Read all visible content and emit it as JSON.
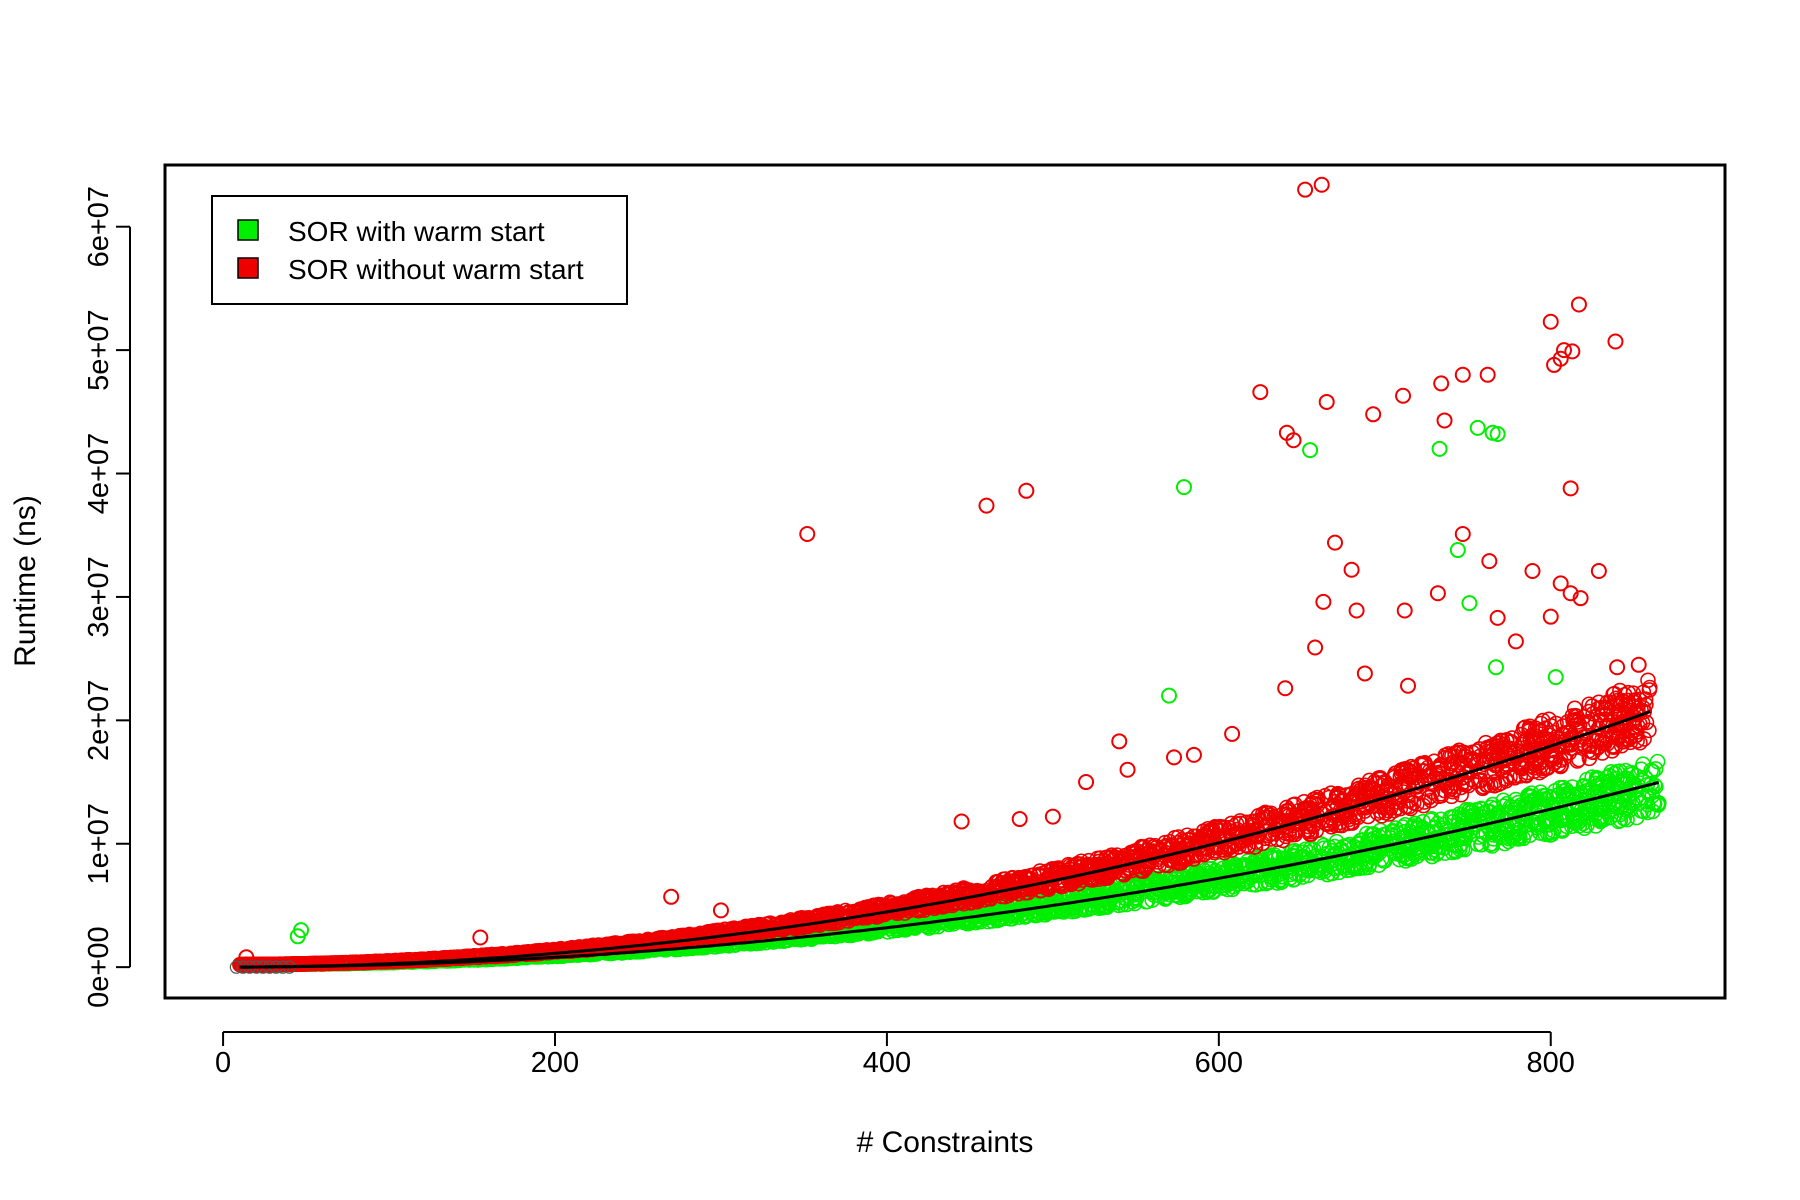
{
  "chart_data": {
    "type": "scatter",
    "title": "",
    "xlabel": "# Constraints",
    "ylabel": "Runtime (ns)",
    "xlim": [
      -35,
      905
    ],
    "ylim": [
      -2500000,
      65000000
    ],
    "x_ticks": [
      0,
      200,
      400,
      600,
      800
    ],
    "x_tick_labels": [
      "0",
      "200",
      "400",
      "600",
      "800"
    ],
    "y_ticks": [
      0,
      10000000,
      20000000,
      30000000,
      40000000,
      50000000,
      60000000
    ],
    "y_tick_labels": [
      "0e+00",
      "1e+07",
      "2e+07",
      "3e+07",
      "4e+07",
      "5e+07",
      "6e+07"
    ],
    "grid": false,
    "legend_position": "top-left",
    "series": [
      {
        "name": "SOR with warm start",
        "color": "#00ee00",
        "marker": "open-circle",
        "trend_coef": 20.0,
        "trend_color": "#000000",
        "band": {
          "x_from": 10,
          "x_to": 865,
          "lower_frac": 0.82,
          "upper_frac": 1.12
        },
        "outliers": [
          [
            45,
            2500000
          ],
          [
            47,
            3000000
          ],
          [
            570,
            22000000
          ],
          [
            579,
            38900000
          ],
          [
            655,
            41900000
          ],
          [
            733,
            42000000
          ],
          [
            744,
            33800000
          ],
          [
            751,
            29500000
          ],
          [
            756,
            43700000
          ],
          [
            765,
            43300000
          ],
          [
            768,
            43200000
          ],
          [
            767,
            24300000
          ],
          [
            803,
            23500000
          ],
          [
            865,
            13300000
          ]
        ]
      },
      {
        "name": "SOR without warm start",
        "color": "#ee0000",
        "marker": "open-circle",
        "trend_coef": 28.0,
        "trend_color": "#000000",
        "band": {
          "x_from": 10,
          "x_to": 860,
          "lower_frac": 0.88,
          "upper_frac": 1.12
        },
        "outliers": [
          [
            352,
            35100000
          ],
          [
            460,
            37400000
          ],
          [
            484,
            38600000
          ],
          [
            625,
            46600000
          ],
          [
            641,
            43300000
          ],
          [
            645,
            42700000
          ],
          [
            652,
            63000000
          ],
          [
            662,
            63400000
          ],
          [
            665,
            45800000
          ],
          [
            693,
            44800000
          ],
          [
            711,
            46300000
          ],
          [
            734,
            47300000
          ],
          [
            736,
            44300000
          ],
          [
            747,
            48000000
          ],
          [
            762,
            48000000
          ],
          [
            800,
            52300000
          ],
          [
            802,
            48800000
          ],
          [
            806,
            49300000
          ],
          [
            808,
            50000000
          ],
          [
            813,
            49900000
          ],
          [
            817,
            53700000
          ],
          [
            839,
            50700000
          ],
          [
            812,
            38800000
          ],
          [
            747,
            35100000
          ],
          [
            670,
            34400000
          ],
          [
            680,
            32200000
          ],
          [
            763,
            32900000
          ],
          [
            789,
            32100000
          ],
          [
            829,
            32100000
          ],
          [
            732,
            30300000
          ],
          [
            663,
            29600000
          ],
          [
            683,
            28900000
          ],
          [
            712,
            28900000
          ],
          [
            768,
            28300000
          ],
          [
            800,
            28400000
          ],
          [
            806,
            31100000
          ],
          [
            812,
            30300000
          ],
          [
            818,
            29900000
          ],
          [
            540,
            18300000
          ],
          [
            573,
            17000000
          ],
          [
            608,
            18900000
          ],
          [
            640,
            22600000
          ],
          [
            658,
            25900000
          ],
          [
            688,
            23800000
          ],
          [
            714,
            22800000
          ],
          [
            270,
            5700000
          ],
          [
            300,
            4600000
          ],
          [
            155,
            2400000
          ],
          [
            14,
            800000
          ],
          [
            445,
            11800000
          ],
          [
            480,
            12000000
          ],
          [
            500,
            12200000
          ],
          [
            520,
            15000000
          ],
          [
            545,
            16000000
          ],
          [
            585,
            17200000
          ],
          [
            840,
            24300000
          ],
          [
            853,
            24500000
          ],
          [
            779,
            26400000
          ]
        ]
      }
    ]
  }
}
